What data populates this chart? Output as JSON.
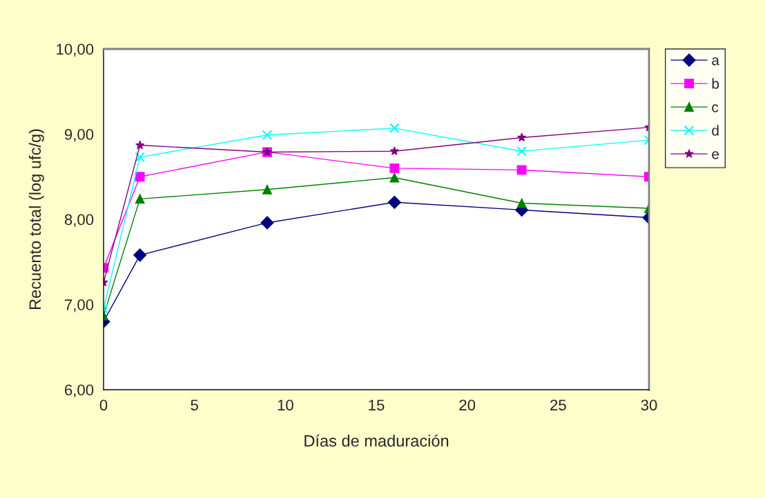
{
  "chart_data": {
    "type": "line",
    "xlabel": "Días de maduración",
    "ylabel": "Recuento total (log ufc/g)",
    "x": [
      0,
      2,
      9,
      16,
      23,
      30
    ],
    "xlim": [
      0,
      30
    ],
    "xticks": [
      0,
      5,
      10,
      15,
      20,
      25,
      30
    ],
    "ylim": [
      6,
      10
    ],
    "yticks": [
      {
        "value": 6,
        "label": "6,00"
      },
      {
        "value": 7,
        "label": "7,00"
      },
      {
        "value": 8,
        "label": "8,00"
      },
      {
        "value": 9,
        "label": "9,00"
      },
      {
        "value": 10,
        "label": "10,00"
      }
    ],
    "grid": false,
    "legend": "right",
    "series": [
      {
        "name": "a",
        "color": "#000080",
        "marker": "diamond",
        "values": [
          6.8,
          7.58,
          7.96,
          8.2,
          8.11,
          8.02
        ]
      },
      {
        "name": "b",
        "color": "#ff00ff",
        "marker": "square",
        "values": [
          7.43,
          8.5,
          8.79,
          8.6,
          8.58,
          8.5
        ]
      },
      {
        "name": "c",
        "color": "#008000",
        "marker": "triangle",
        "values": [
          6.87,
          8.24,
          8.35,
          8.49,
          8.19,
          8.13
        ]
      },
      {
        "name": "d",
        "color": "#00ffff",
        "marker": "cross",
        "values": [
          6.95,
          8.73,
          8.99,
          9.07,
          8.8,
          8.93
        ]
      },
      {
        "name": "e",
        "color": "#800080",
        "marker": "star",
        "values": [
          7.26,
          8.87,
          8.79,
          8.8,
          8.96,
          9.08
        ]
      }
    ]
  }
}
